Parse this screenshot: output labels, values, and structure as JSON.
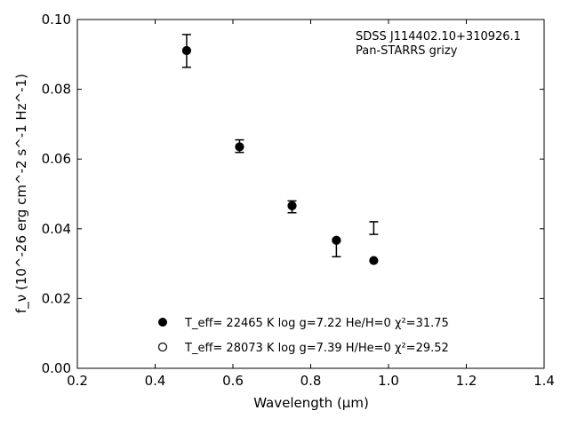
{
  "chart_data": {
    "type": "scatter",
    "xlabel": "Wavelength (μm)",
    "ylabel": "f_ν (10^-26 erg cm^-2 s^-1 Hz^-1)",
    "xlim": [
      0.2,
      1.4
    ],
    "ylim": [
      0.0,
      0.1
    ],
    "xticks": [
      "0.2",
      "0.4",
      "0.6",
      "0.8",
      "1.0",
      "1.2",
      "1.4"
    ],
    "yticks": [
      "0.00",
      "0.02",
      "0.04",
      "0.06",
      "0.08",
      "0.10"
    ],
    "grid": false,
    "annotation_lines": [
      "SDSS J114402.10+310926.1",
      "Pan-STARRS grizy"
    ],
    "observed": {
      "x": [
        0.481,
        0.617,
        0.752,
        0.866,
        0.962
      ],
      "y": [
        0.091,
        0.0637,
        0.0463,
        0.0342,
        0.0402
      ],
      "yerr": [
        0.0047,
        0.0018,
        0.0017,
        0.0022,
        0.0018
      ]
    },
    "series": [
      {
        "legend_text": "T_eff= 22465 K  log g=7.22  He/H=0  χ²=31.75",
        "marker": "filled-circle",
        "x": [
          0.481,
          0.617,
          0.752,
          0.866,
          0.962
        ],
        "y": [
          0.0911,
          0.0635,
          0.0466,
          0.0367,
          0.0309
        ]
      },
      {
        "legend_text": "T_eff= 28073 K  log g=7.39  H/He=0  χ²=29.52",
        "marker": "open-circle",
        "x": [],
        "y": []
      }
    ],
    "legend_position": "lower-center"
  }
}
